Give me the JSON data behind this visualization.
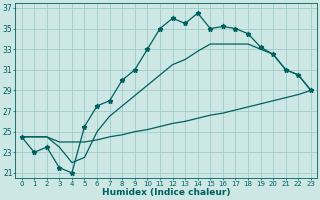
{
  "bg_color": "#cde8e4",
  "grid_color": "#a0cccc",
  "line_color": "#005f5f",
  "xlim": [
    -0.5,
    23.5
  ],
  "ylim": [
    20.5,
    37.5
  ],
  "xticks": [
    0,
    1,
    2,
    3,
    4,
    5,
    6,
    7,
    8,
    9,
    10,
    11,
    12,
    13,
    14,
    15,
    16,
    17,
    18,
    19,
    20,
    21,
    22,
    23
  ],
  "yticks": [
    21,
    23,
    25,
    27,
    29,
    31,
    33,
    35,
    37
  ],
  "xlabel": "Humidex (Indice chaleur)",
  "line1_x": [
    0,
    1,
    2,
    3,
    4,
    5,
    6,
    7,
    8,
    9,
    10,
    11,
    12,
    13,
    14,
    15,
    16,
    17,
    18,
    19,
    20,
    21,
    22,
    23
  ],
  "line1_y": [
    24.5,
    23.0,
    23.5,
    21.5,
    21.0,
    25.5,
    27.5,
    28.0,
    30.0,
    31.0,
    33.0,
    35.0,
    36.0,
    35.5,
    36.5,
    35.0,
    35.2,
    35.0,
    34.5,
    33.2,
    32.5,
    31.0,
    30.5,
    29.0
  ],
  "line2_x": [
    0,
    2,
    3,
    4,
    5,
    6,
    7,
    8,
    9,
    10,
    11,
    12,
    13,
    14,
    15,
    16,
    17,
    18,
    19,
    20,
    21,
    22,
    23
  ],
  "line2_y": [
    24.5,
    24.5,
    24.0,
    24.0,
    24.0,
    24.2,
    24.5,
    24.7,
    25.0,
    25.2,
    25.5,
    25.8,
    26.0,
    26.3,
    26.6,
    26.8,
    27.1,
    27.4,
    27.7,
    28.0,
    28.3,
    28.6,
    29.0
  ],
  "line3_x": [
    0,
    2,
    3,
    4,
    5,
    6,
    7,
    8,
    9,
    10,
    11,
    12,
    13,
    14,
    15,
    16,
    17,
    18,
    19,
    20,
    21,
    22,
    23
  ],
  "line3_y": [
    24.5,
    24.5,
    23.5,
    22.0,
    22.5,
    25.0,
    26.5,
    27.5,
    28.5,
    29.5,
    30.5,
    31.5,
    32.0,
    32.8,
    33.5,
    33.5,
    33.5,
    33.5,
    33.0,
    32.5,
    31.0,
    30.5,
    29.0
  ]
}
